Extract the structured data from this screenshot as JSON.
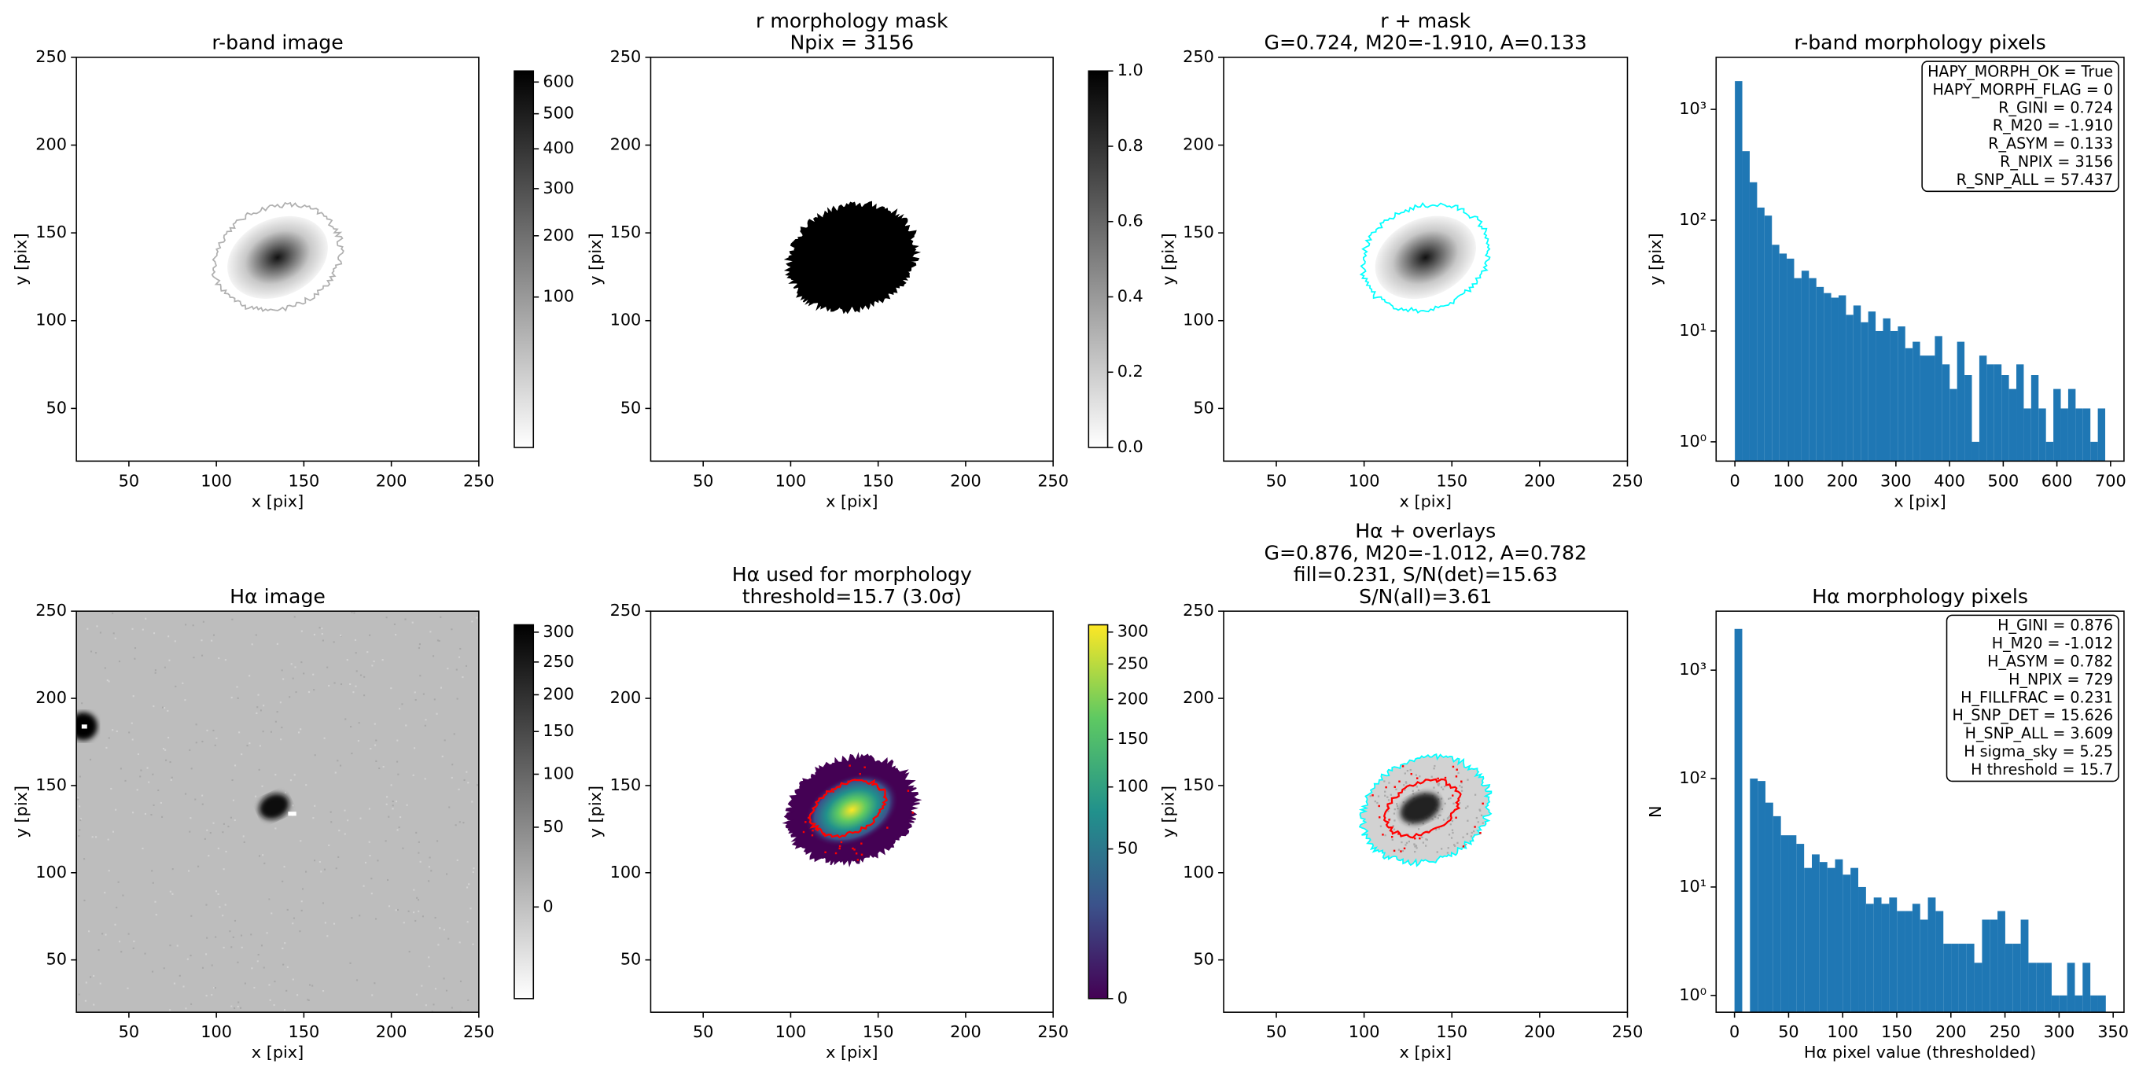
{
  "chart_data": [
    {
      "type": "image",
      "title": [
        "r-band image"
      ],
      "xlabel": "x [pix]",
      "ylabel": "y [pix]",
      "xlim": [
        20,
        250
      ],
      "ylim": [
        20,
        250
      ],
      "xticks": [
        50,
        100,
        150,
        200,
        250
      ],
      "yticks": [
        50,
        100,
        150,
        200,
        250
      ],
      "colormap": "gray_r",
      "overlay_colors": [
        "#b0b0b0"
      ],
      "colorbar": {
        "clim": [
          -2,
          637
        ],
        "stretch": "sqrt",
        "ticks": [
          100,
          200,
          300,
          400,
          500,
          600
        ]
      }
    },
    {
      "type": "image",
      "title": [
        "r morphology mask",
        "Npix = 3156"
      ],
      "xlabel": "x [pix]",
      "ylabel": "y [pix]",
      "xlim": [
        20,
        250
      ],
      "ylim": [
        20,
        250
      ],
      "xticks": [
        50,
        100,
        150,
        200,
        250
      ],
      "yticks": [
        50,
        100,
        150,
        200,
        250
      ],
      "colormap": "gray_r",
      "overlay_colors": [],
      "colorbar": {
        "clim": [
          0,
          1
        ],
        "stretch": "linear",
        "ticks": [
          {
            "value": 0,
            "label": "0.0"
          },
          0.2,
          0.4,
          0.6,
          0.8,
          {
            "value": 1,
            "label": "1.0"
          }
        ]
      }
    },
    {
      "type": "image",
      "title": [
        "r + mask",
        "G=0.724, M20=-1.910, A=0.133"
      ],
      "xlabel": "x [pix]",
      "ylabel": "y [pix]",
      "xlim": [
        20,
        250
      ],
      "ylim": [
        20,
        250
      ],
      "xticks": [
        50,
        100,
        150,
        200,
        250
      ],
      "yticks": [
        50,
        100,
        150,
        200,
        250
      ],
      "colormap": "gray_r",
      "overlay_colors": [
        "#00ffff"
      ]
    },
    {
      "type": "histogram",
      "title": [
        "r-band morphology pixels"
      ],
      "xlabel": "x [pix]",
      "ylabel": "y [pix]",
      "color": "#1f77b4",
      "log_y": true,
      "xlim": [
        -35,
        725
      ],
      "ylim": [
        0.67,
        2950
      ],
      "xticks": [
        0,
        100,
        200,
        300,
        400,
        500,
        600,
        700
      ],
      "yticks": [
        {
          "value": 1,
          "label": "10⁰"
        },
        {
          "value": 10,
          "label": "10¹"
        },
        {
          "value": 100,
          "label": "10²"
        },
        {
          "value": 1000,
          "label": "10³"
        }
      ],
      "bins": [
        0,
        13.8,
        27.6,
        41.4,
        55.2,
        69,
        82.8,
        96.6,
        110.4,
        124.2,
        138,
        151.8,
        165.6,
        179.4,
        193.2,
        207,
        220.8,
        234.6,
        248.4,
        262.2,
        276,
        289.8,
        303.6,
        317.4,
        331.2,
        345,
        358.8,
        372.6,
        386.4,
        400.2,
        414,
        427.8,
        441.6,
        455.4,
        469.2,
        483,
        496.8,
        510.6,
        524.4,
        538.2,
        552,
        565.8,
        579.6,
        593.4,
        607.2,
        621,
        634.8,
        648.6,
        662.4,
        676.2,
        690
      ],
      "counts": [
        1800,
        420,
        220,
        130,
        110,
        60,
        50,
        45,
        30,
        35,
        30,
        25,
        22,
        20,
        21,
        14,
        17,
        12,
        15,
        10,
        13,
        10,
        11,
        7,
        8,
        6,
        6,
        9,
        5,
        3,
        8,
        4,
        1,
        6,
        5,
        5,
        4,
        3,
        5,
        2,
        4,
        2,
        1,
        3,
        2,
        3,
        2,
        2,
        1,
        2
      ],
      "annotation": [
        "HAPY_MORPH_OK = True",
        "HAPY_MORPH_FLAG = 0",
        "R_GINI = 0.724",
        "R_M20 = -1.910",
        "R_ASYM = 0.133",
        "R_NPIX = 3156",
        "R_SNP_ALL = 57.437"
      ]
    },
    {
      "type": "image",
      "title": [
        "Hα image"
      ],
      "xlabel": "x [pix]",
      "ylabel": "y [pix]",
      "xlim": [
        20,
        250
      ],
      "ylim": [
        20,
        250
      ],
      "xticks": [
        50,
        100,
        150,
        200,
        250
      ],
      "yticks": [
        50,
        100,
        150,
        200,
        250
      ],
      "colormap": "gray_r",
      "overlay_colors": [],
      "colorbar": {
        "clim": [
          -20,
          313
        ],
        "stretch": "sqrt",
        "ticks": [
          0,
          50,
          100,
          150,
          200,
          250,
          300
        ]
      }
    },
    {
      "type": "image",
      "title": [
        "Hα used for morphology",
        "threshold=15.7 (3.0σ)"
      ],
      "xlabel": "x [pix]",
      "ylabel": "y [pix]",
      "xlim": [
        20,
        250
      ],
      "ylim": [
        20,
        250
      ],
      "xticks": [
        50,
        100,
        150,
        200,
        250
      ],
      "yticks": [
        50,
        100,
        150,
        200,
        250
      ],
      "colormap": "viridis",
      "overlay_colors": [
        "#ff0000"
      ],
      "colorbar": {
        "clim": [
          0,
          312
        ],
        "stretch": "sqrt",
        "ticks": [
          0,
          50,
          100,
          150,
          200,
          250,
          300
        ]
      }
    },
    {
      "type": "image",
      "title": [
        "Hα + overlays",
        "G=0.876, M20=-1.012, A=0.782",
        "fill=0.231, S/N(det)=15.63",
        "S/N(all)=3.61"
      ],
      "xlabel": "x [pix]",
      "ylabel": "y [pix]",
      "xlim": [
        20,
        250
      ],
      "ylim": [
        20,
        250
      ],
      "xticks": [
        50,
        100,
        150,
        200,
        250
      ],
      "yticks": [
        50,
        100,
        150,
        200,
        250
      ],
      "colormap": "gray_r",
      "overlay_colors": [
        "#00ffff",
        "#ff0000"
      ]
    },
    {
      "type": "histogram",
      "title": [
        "Hα morphology pixels"
      ],
      "xlabel": "Hα pixel value (thresholded)",
      "ylabel": "N",
      "color": "#1f77b4",
      "log_y": true,
      "xlim": [
        -17,
        360
      ],
      "ylim": [
        0.7,
        3500
      ],
      "xticks": [
        0,
        50,
        100,
        150,
        200,
        250,
        300,
        350
      ],
      "yticks": [
        {
          "value": 1,
          "label": "10⁰"
        },
        {
          "value": 10,
          "label": "10¹"
        },
        {
          "value": 100,
          "label": "10²"
        },
        {
          "value": 1000,
          "label": "10³"
        }
      ],
      "bins": [
        0,
        7.15,
        14.3,
        21.45,
        28.6,
        35.75,
        42.9,
        50.05,
        57.2,
        64.35,
        71.5,
        78.65,
        85.8,
        92.95,
        100.1,
        107.25,
        114.4,
        121.55,
        128.7,
        135.85,
        143,
        150.15,
        157.3,
        164.45,
        171.6,
        178.75,
        185.9,
        193.05,
        200.2,
        207.35,
        214.5,
        221.65,
        228.8,
        235.95,
        243.1,
        250.25,
        257.4,
        264.55,
        271.7,
        278.85,
        286,
        293.15,
        300.3,
        307.45,
        314.6,
        321.75,
        328.9,
        336.05,
        343.2
      ],
      "counts": [
        2400,
        0,
        100,
        95,
        60,
        45,
        30,
        30,
        25,
        15,
        20,
        17,
        15,
        18,
        13,
        15,
        10,
        7,
        8,
        7,
        8,
        6,
        6,
        7,
        5,
        8,
        6,
        3,
        3,
        3,
        3,
        2,
        5,
        5,
        6,
        3,
        3,
        5,
        2,
        2,
        2,
        1,
        1,
        2,
        1,
        2,
        1,
        1
      ],
      "annotation": [
        "H_GINI = 0.876",
        "H_M20 = -1.012",
        "H_ASYM = 0.782",
        "H_NPIX = 729",
        "H_FILLFRAC = 0.231",
        "H_SNP_DET = 15.626",
        "H_SNP_ALL = 3.609",
        "H sigma_sky = 5.25",
        "H threshold = 15.7"
      ]
    }
  ]
}
